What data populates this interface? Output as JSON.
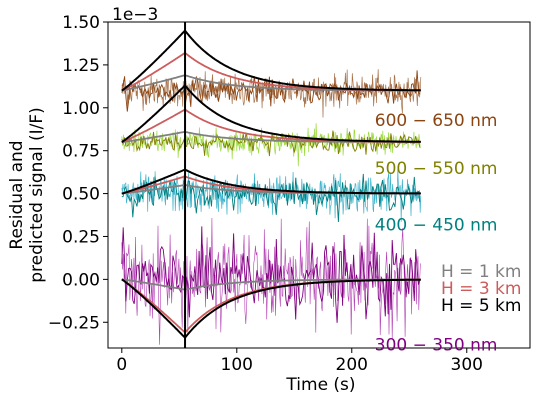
{
  "chart_data": {
    "type": "line",
    "xlabel": "Time (s)",
    "ylabel_lines": [
      "Residual and",
      "predicted signal (I/F)"
    ],
    "y_multiplier": "1e−3",
    "xlim": [
      -12,
      355
    ],
    "ylim": [
      -0.4,
      1.5
    ],
    "x_ticks": [
      {
        "value": 0,
        "label": "0"
      },
      {
        "value": 100,
        "label": "100"
      },
      {
        "value": 200,
        "label": "200"
      },
      {
        "value": 300,
        "label": "300"
      }
    ],
    "y_ticks": [
      {
        "value": -0.25,
        "label": "−0.25"
      },
      {
        "value": 0.0,
        "label": "0.00"
      },
      {
        "value": 0.25,
        "label": "0.25"
      },
      {
        "value": 0.5,
        "label": "0.50"
      },
      {
        "value": 0.75,
        "label": "0.75"
      },
      {
        "value": 1.0,
        "label": "1.00"
      },
      {
        "value": 1.25,
        "label": "1.25"
      },
      {
        "value": 1.5,
        "label": "1.50"
      }
    ],
    "vertical_line_x": 55,
    "time_range": [
      0,
      260
    ],
    "bands": [
      {
        "label": "600 − 650 nm",
        "color": "#8B4513",
        "offset": 1.1,
        "noise_amplitude": 0.045,
        "label_x": 220,
        "label_y": 0.93
      },
      {
        "label": "500 − 550 nm",
        "color": "#808000",
        "offset": 0.8,
        "noise_amplitude": 0.035,
        "label_x": 220,
        "label_y": 0.65,
        "residual_color": "#7CCD00"
      },
      {
        "label": "400 − 450 nm",
        "color": "#008080",
        "offset": 0.5,
        "noise_amplitude": 0.055,
        "label_x": 220,
        "label_y": 0.32,
        "residual_color": "#0099BB"
      },
      {
        "label": "300 − 350 nm",
        "color": "#800080",
        "offset": 0.0,
        "noise_amplitude": 0.13,
        "label_x": 220,
        "label_y": -0.38,
        "residual_color": "#990099"
      }
    ],
    "models": [
      {
        "name": "H = 1 km",
        "color": "#808080",
        "amplitudes": {
          "600": 0.09,
          "500": 0.06,
          "400": 0.05,
          "300": -0.06
        }
      },
      {
        "name": "H = 3 km",
        "color": "#CD5C5C",
        "amplitudes": {
          "600": 0.22,
          "500": 0.19,
          "400": 0.1,
          "300": -0.31
        }
      },
      {
        "name": "H = 5 km",
        "color": "#000000",
        "amplitudes": {
          "600": 0.35,
          "500": 0.33,
          "400": 0.14,
          "300": -0.34
        }
      }
    ],
    "legend_position": "right-lower"
  }
}
